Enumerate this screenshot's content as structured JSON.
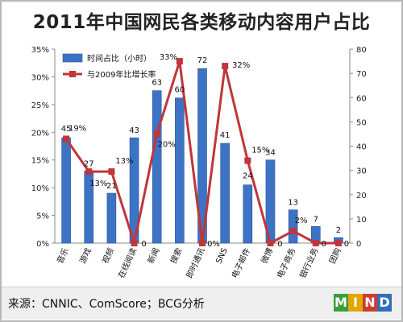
{
  "title": "2011年中国网民各类移动内容用户占比",
  "source": "来源：CNNIC、ComScore；BCG分析",
  "logo": {
    "letters": [
      "M",
      "I",
      "N",
      "D"
    ],
    "colors": [
      "#3a9e3a",
      "#e0a800",
      "#d03a2f",
      "#2f6fb7"
    ]
  },
  "colors": {
    "bar": "#3d73c4",
    "bar_dark": "#2a5597",
    "line": "#c0363a"
  },
  "chart_data": {
    "type": "bar",
    "categories": [
      "音乐",
      "游戏",
      "视频",
      "在线阅读",
      "新闻",
      "搜索",
      "即时通讯",
      "SNS",
      "电子邮件",
      "微博",
      "电子商务",
      "银行业务",
      "团购"
    ],
    "series": [
      {
        "name": "时间占比（小时）",
        "type": "bar",
        "axis": "left",
        "values": [
          19,
          13,
          9,
          19,
          27.5,
          26.2,
          31.5,
          18,
          10.5,
          15,
          6,
          3,
          1
        ],
        "labels": [
          "45",
          "27",
          "21",
          "43",
          "63",
          "60",
          "72",
          "41",
          "24",
          "34",
          "13",
          "7",
          "2"
        ]
      },
      {
        "name": "与2009年比增长率",
        "type": "line",
        "axis": "right",
        "values": [
          43,
          29.5,
          29.5,
          0,
          45,
          75,
          0,
          73,
          34,
          0,
          5,
          0,
          0
        ],
        "labels": [
          "19%",
          "13%",
          "13%",
          "0",
          "20%",
          "33%",
          "0%",
          "32%",
          "15%",
          "0",
          "2%",
          "0",
          "0"
        ]
      }
    ],
    "y_left": {
      "ticks": [
        "0%",
        "5%",
        "10%",
        "15%",
        "20%",
        "25%",
        "30%",
        "35%"
      ],
      "range": [
        0,
        35
      ]
    },
    "y_right": {
      "ticks": [
        "0",
        "10",
        "20",
        "30",
        "40",
        "50",
        "60",
        "70",
        "80"
      ],
      "range": [
        0,
        80
      ]
    },
    "legend_position": "top-left",
    "grid": false
  }
}
